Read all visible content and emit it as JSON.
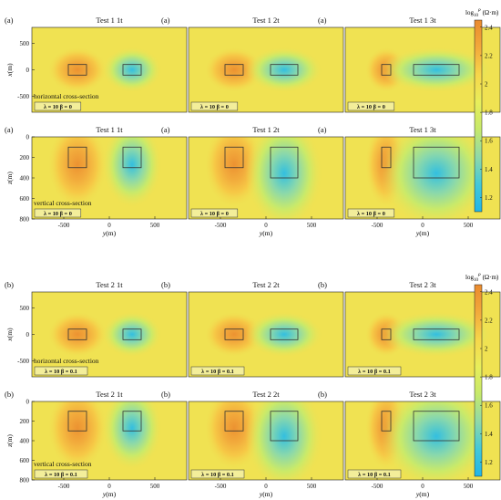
{
  "figure": {
    "colorbar": {
      "label_base": "log",
      "label_sub": "10",
      "label_sup": "ρ",
      "label_unit": "(Ω·m)",
      "ticks": [
        "1.2",
        "1.4",
        "1.6",
        "1.8",
        "2",
        "2.2",
        "2.4"
      ],
      "range": [
        1.1,
        2.45
      ],
      "colors": [
        "#21b5e8",
        "#43c8d8",
        "#8fd9a8",
        "#c6e96b",
        "#e8ee5a",
        "#f7d64a",
        "#f2a93b",
        "#ea8a2e"
      ]
    },
    "axes": {
      "x_label_prefix": "x",
      "z_label_prefix": "z",
      "y_label_prefix": "y",
      "unit": "(m)"
    }
  },
  "chart_data": [
    {
      "type": "heatmap",
      "row": 0,
      "col": 0,
      "panel_tag": "(a)",
      "title": "Test 1 1t",
      "view": "horizontal",
      "annotation": "horizontal cross-section",
      "param_label": "λ = 10  β = 0",
      "yticks": [
        "500",
        "0",
        "-500"
      ],
      "xticks": [],
      "ylim": [
        -800,
        800
      ],
      "xlim": [
        -850,
        850
      ],
      "blocks": [
        {
          "x0": -450,
          "x1": -250,
          "y0": -100,
          "y1": 100,
          "value": 2.4
        },
        {
          "x0": 150,
          "x1": 350,
          "y0": -100,
          "y1": 100,
          "value": 1.2
        }
      ]
    },
    {
      "type": "heatmap",
      "row": 0,
      "col": 1,
      "panel_tag": "(a)",
      "title": "Test 1 2t",
      "view": "horizontal",
      "annotation": "",
      "param_label": "λ = 10  β = 0",
      "yticks": [],
      "xticks": [],
      "ylim": [
        -800,
        800
      ],
      "xlim": [
        -850,
        850
      ],
      "blocks": [
        {
          "x0": -450,
          "x1": -250,
          "y0": -100,
          "y1": 100,
          "value": 2.4
        },
        {
          "x0": 50,
          "x1": 350,
          "y0": -100,
          "y1": 100,
          "value": 1.2
        }
      ]
    },
    {
      "type": "heatmap",
      "row": 0,
      "col": 2,
      "panel_tag": "(a)",
      "title": "Test 1 3t",
      "view": "horizontal",
      "annotation": "",
      "param_label": "λ = 10  β = 0",
      "yticks": [],
      "xticks": [],
      "ylim": [
        -800,
        800
      ],
      "xlim": [
        -850,
        850
      ],
      "blocks": [
        {
          "x0": -450,
          "x1": -350,
          "y0": -100,
          "y1": 100,
          "value": 2.4
        },
        {
          "x0": -100,
          "x1": 400,
          "y0": -100,
          "y1": 100,
          "value": 1.2
        }
      ]
    },
    {
      "type": "heatmap",
      "row": 1,
      "col": 0,
      "panel_tag": "(a)",
      "title": "Test 1 1t",
      "view": "vertical",
      "annotation": "vertical cross-section",
      "param_label": "λ = 10  β = 0",
      "yticks": [
        "0",
        "200",
        "400",
        "600",
        "800"
      ],
      "xticks": [
        "-500",
        "0",
        "500"
      ],
      "ylim": [
        0,
        800
      ],
      "xlim": [
        -850,
        850
      ],
      "blocks": [
        {
          "x0": -450,
          "x1": -250,
          "y0": 100,
          "y1": 300,
          "value": 2.4
        },
        {
          "x0": 150,
          "x1": 350,
          "y0": 100,
          "y1": 300,
          "value": 1.2
        }
      ]
    },
    {
      "type": "heatmap",
      "row": 1,
      "col": 1,
      "panel_tag": "(a)",
      "title": "Test 1 2t",
      "view": "vertical",
      "annotation": "",
      "param_label": "λ = 10  β = 0",
      "yticks": [],
      "xticks": [
        "-500",
        "0",
        "500"
      ],
      "ylim": [
        0,
        800
      ],
      "xlim": [
        -850,
        850
      ],
      "blocks": [
        {
          "x0": -450,
          "x1": -250,
          "y0": 100,
          "y1": 300,
          "value": 2.4
        },
        {
          "x0": 50,
          "x1": 350,
          "y0": 100,
          "y1": 400,
          "value": 1.2
        }
      ]
    },
    {
      "type": "heatmap",
      "row": 1,
      "col": 2,
      "panel_tag": "(a)",
      "title": "Test 1 3t",
      "view": "vertical",
      "annotation": "",
      "param_label": "λ = 10  β = 0",
      "yticks": [],
      "xticks": [
        "-500",
        "0",
        "500"
      ],
      "ylim": [
        0,
        800
      ],
      "xlim": [
        -850,
        850
      ],
      "blocks": [
        {
          "x0": -450,
          "x1": -350,
          "y0": 100,
          "y1": 300,
          "value": 2.4
        },
        {
          "x0": -100,
          "x1": 400,
          "y0": 100,
          "y1": 400,
          "value": 1.2
        }
      ]
    },
    {
      "type": "heatmap",
      "row": 2,
      "col": 0,
      "panel_tag": "(b)",
      "title": "Test 2 1t",
      "view": "horizontal",
      "annotation": "horizontal cross-section",
      "param_label": "λ = 10  β = 0.1",
      "yticks": [
        "500",
        "0",
        "-500"
      ],
      "xticks": [],
      "ylim": [
        -800,
        800
      ],
      "xlim": [
        -850,
        850
      ],
      "blocks": [
        {
          "x0": -450,
          "x1": -250,
          "y0": -100,
          "y1": 100,
          "value": 2.4
        },
        {
          "x0": 150,
          "x1": 350,
          "y0": -100,
          "y1": 100,
          "value": 1.2
        }
      ]
    },
    {
      "type": "heatmap",
      "row": 2,
      "col": 1,
      "panel_tag": "(b)",
      "title": "Test 2 2t",
      "view": "horizontal",
      "annotation": "",
      "param_label": "λ = 10  β = 0.1",
      "yticks": [],
      "xticks": [],
      "ylim": [
        -800,
        800
      ],
      "xlim": [
        -850,
        850
      ],
      "blocks": [
        {
          "x0": -450,
          "x1": -250,
          "y0": -100,
          "y1": 100,
          "value": 2.4
        },
        {
          "x0": 50,
          "x1": 350,
          "y0": -100,
          "y1": 100,
          "value": 1.2
        }
      ]
    },
    {
      "type": "heatmap",
      "row": 2,
      "col": 2,
      "panel_tag": "(b)",
      "title": "Test 2 3t",
      "view": "horizontal",
      "annotation": "",
      "param_label": "λ = 10  β = 0.1",
      "yticks": [],
      "xticks": [],
      "ylim": [
        -800,
        800
      ],
      "xlim": [
        -850,
        850
      ],
      "blocks": [
        {
          "x0": -450,
          "x1": -350,
          "y0": -100,
          "y1": 100,
          "value": 2.4
        },
        {
          "x0": -100,
          "x1": 400,
          "y0": -100,
          "y1": 100,
          "value": 1.2
        }
      ]
    },
    {
      "type": "heatmap",
      "row": 3,
      "col": 0,
      "panel_tag": "(b)",
      "title": "Test 2 1t",
      "view": "vertical",
      "annotation": "vertical cross-section",
      "param_label": "λ = 10  β = 0.1",
      "yticks": [
        "0",
        "200",
        "400",
        "600",
        "800"
      ],
      "xticks": [
        "-500",
        "0",
        "500"
      ],
      "ylim": [
        0,
        800
      ],
      "xlim": [
        -850,
        850
      ],
      "blocks": [
        {
          "x0": -450,
          "x1": -250,
          "y0": 100,
          "y1": 300,
          "value": 2.4
        },
        {
          "x0": 150,
          "x1": 350,
          "y0": 100,
          "y1": 300,
          "value": 1.2
        }
      ]
    },
    {
      "type": "heatmap",
      "row": 3,
      "col": 1,
      "panel_tag": "(b)",
      "title": "Test 2 2t",
      "view": "vertical",
      "annotation": "",
      "param_label": "λ = 10  β = 0.1",
      "yticks": [],
      "xticks": [
        "-500",
        "0",
        "500"
      ],
      "ylim": [
        0,
        800
      ],
      "xlim": [
        -850,
        850
      ],
      "blocks": [
        {
          "x0": -450,
          "x1": -250,
          "y0": 100,
          "y1": 300,
          "value": 2.4
        },
        {
          "x0": 50,
          "x1": 350,
          "y0": 100,
          "y1": 400,
          "value": 1.2
        }
      ]
    },
    {
      "type": "heatmap",
      "row": 3,
      "col": 2,
      "panel_tag": "(b)",
      "title": "Test 2 3t",
      "view": "vertical",
      "annotation": "",
      "param_label": "λ = 10  β = 0.1",
      "yticks": [],
      "xticks": [
        "-500",
        "0",
        "500"
      ],
      "ylim": [
        0,
        800
      ],
      "xlim": [
        -850,
        850
      ],
      "blocks": [
        {
          "x0": -450,
          "x1": -350,
          "y0": 100,
          "y1": 300,
          "value": 2.4
        },
        {
          "x0": -100,
          "x1": 400,
          "y0": 100,
          "y1": 400,
          "value": 1.2
        }
      ]
    }
  ]
}
